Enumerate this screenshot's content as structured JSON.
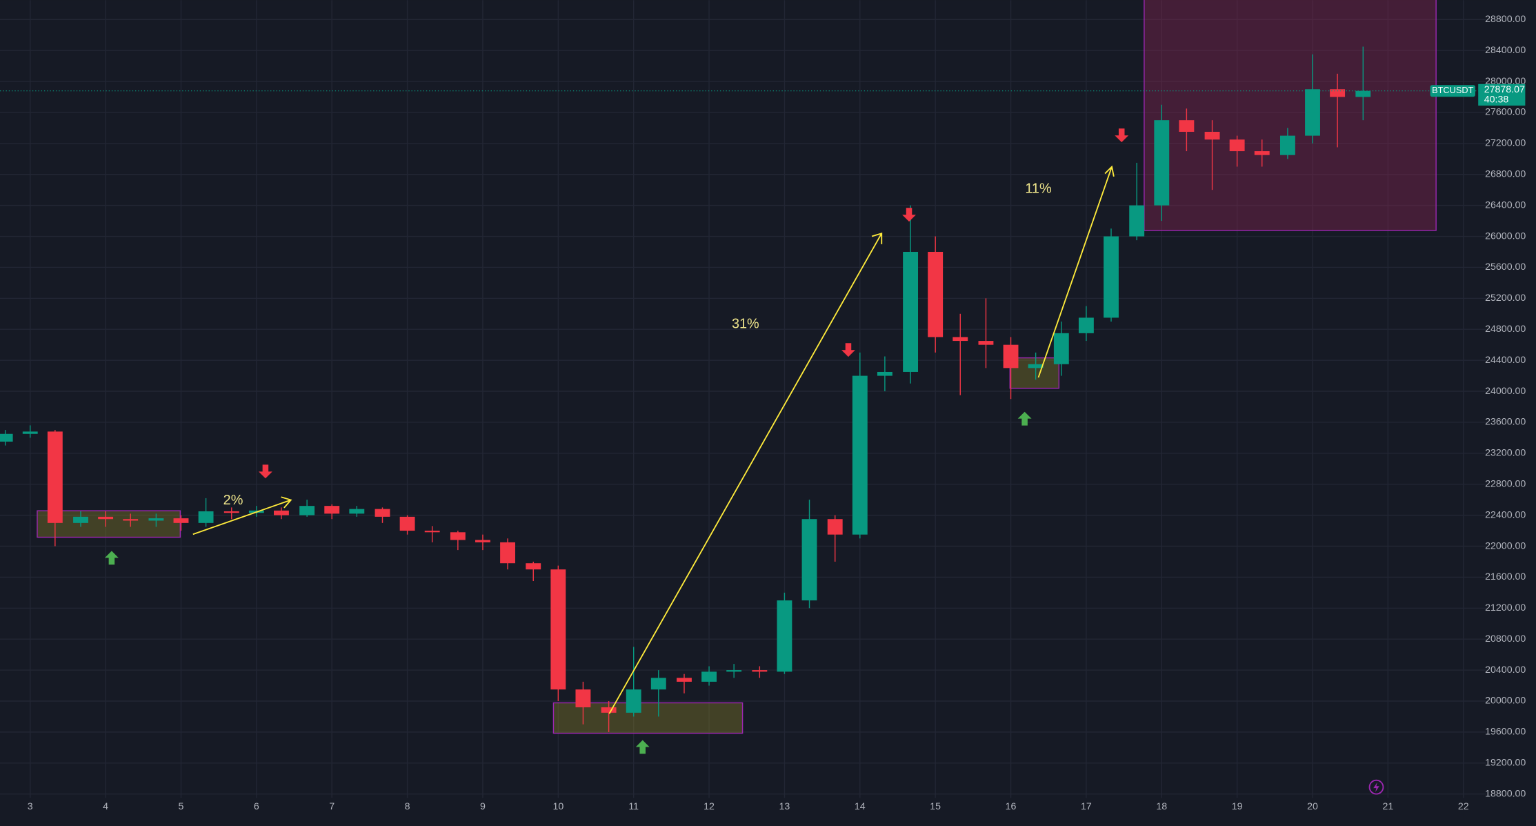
{
  "chart_data": {
    "type": "candlestick",
    "symbol": "BTCUSDT",
    "last_price": 27878.07,
    "countdown": "40:38",
    "x": [
      2.67,
      3,
      3.33,
      3.67,
      4,
      4.33,
      4.67,
      5,
      5.33,
      5.67,
      6,
      6.33,
      6.67,
      7,
      7.33,
      7.67,
      8,
      8.33,
      8.67,
      9,
      9.33,
      9.67,
      10,
      10.33,
      10.67,
      11,
      11.33,
      11.67,
      12,
      12.33,
      12.67,
      13,
      13.33,
      13.67,
      14,
      14.33,
      14.67,
      15,
      15.33,
      15.67,
      16,
      16.33,
      16.67,
      17,
      17.33,
      17.67,
      18,
      18.33,
      18.67,
      19,
      19.33,
      19.67,
      20,
      20.33,
      20.67
    ],
    "open": [
      23350,
      23450,
      23480,
      22300,
      22380,
      22350,
      22330,
      22360,
      22300,
      22450,
      22430,
      22460,
      22400,
      22520,
      22420,
      22480,
      22380,
      22200,
      22180,
      22080,
      22050,
      21780,
      21700,
      20150,
      19920,
      19850,
      20150,
      20300,
      20250,
      20380,
      20400,
      20380,
      21300,
      22350,
      22150,
      24200,
      24250,
      25800,
      24700,
      24650,
      24600,
      24300,
      24350,
      24750,
      24950,
      26000,
      26400,
      27500,
      27350,
      27250,
      27100,
      27050,
      27300,
      27900,
      27800
    ],
    "high": [
      23500,
      23560,
      23500,
      22450,
      22450,
      22420,
      22420,
      22400,
      22620,
      22500,
      22520,
      22500,
      22600,
      22540,
      22520,
      22500,
      22400,
      22260,
      22200,
      22150,
      22100,
      21800,
      21750,
      20250,
      20000,
      20700,
      20400,
      20350,
      20450,
      20480,
      20450,
      21400,
      22600,
      22400,
      24500,
      24450,
      26400,
      26000,
      25000,
      25200,
      24700,
      24500,
      24900,
      25100,
      26100,
      26950,
      27700,
      27650,
      27500,
      27300,
      27250,
      27400,
      28350,
      28100,
      28450
    ],
    "low": [
      23300,
      23400,
      22000,
      22250,
      22250,
      22250,
      22250,
      22200,
      22250,
      22350,
      22380,
      22350,
      22380,
      22350,
      22380,
      22300,
      22150,
      22050,
      21950,
      21950,
      21700,
      21550,
      20000,
      19700,
      19600,
      19800,
      19800,
      20100,
      20200,
      20300,
      20300,
      20350,
      21200,
      21800,
      22100,
      24000,
      24100,
      24500,
      23950,
      24300,
      23900,
      24150,
      24200,
      24650,
      24900,
      25950,
      26200,
      27100,
      26600,
      26900,
      26900,
      27000,
      27200,
      27150,
      27500
    ],
    "close": [
      23450,
      23480,
      22300,
      22380,
      22350,
      22330,
      22360,
      22300,
      22450,
      22430,
      22460,
      22400,
      22520,
      22420,
      22480,
      22380,
      22200,
      22180,
      22080,
      22050,
      21780,
      21700,
      20150,
      19920,
      19850,
      20150,
      20300,
      20250,
      20380,
      20400,
      20380,
      21300,
      22350,
      22150,
      24200,
      24250,
      25800,
      24700,
      24650,
      24600,
      24300,
      24350,
      24750,
      24950,
      26000,
      26400,
      27500,
      27350,
      27250,
      27100,
      27050,
      27300,
      27900,
      27800,
      27878
    ],
    "up_color": "#089981",
    "down_color": "#f23645",
    "xlim": [
      2.6,
      22.3
    ],
    "ylim": [
      18750,
      29050
    ],
    "xticks": [
      3,
      4,
      5,
      6,
      7,
      8,
      9,
      10,
      11,
      12,
      13,
      14,
      15,
      16,
      17,
      18,
      19,
      20,
      21,
      22
    ],
    "yticks": [
      {
        "value": 18800,
        "label": "18800.00"
      },
      {
        "value": 19200,
        "label": "19200.00"
      },
      {
        "value": 19600,
        "label": "19600.00"
      },
      {
        "value": 20000,
        "label": "20000.00"
      },
      {
        "value": 20400,
        "label": "20400.00"
      },
      {
        "value": 20800,
        "label": "20800.00"
      },
      {
        "value": 21200,
        "label": "21200.00"
      },
      {
        "value": 21600,
        "label": "21600.00"
      },
      {
        "value": 22000,
        "label": "22000.00"
      },
      {
        "value": 22400,
        "label": "22400.00"
      },
      {
        "value": 22800,
        "label": "22800.00"
      },
      {
        "value": 23200,
        "label": "23200.00"
      },
      {
        "value": 23600,
        "label": "23600.00"
      },
      {
        "value": 24000,
        "label": "24000.00"
      },
      {
        "value": 24400,
        "label": "24400.00"
      },
      {
        "value": 24800,
        "label": "24800.00"
      },
      {
        "value": 25200,
        "label": "25200.00"
      },
      {
        "value": 25600,
        "label": "25600.00"
      },
      {
        "value": 26000,
        "label": "26000.00"
      },
      {
        "value": 26400,
        "label": "26400.00"
      },
      {
        "value": 26800,
        "label": "26800.00"
      },
      {
        "value": 27200,
        "label": "27200.00"
      },
      {
        "value": 27600,
        "label": "27600.00"
      },
      {
        "value": 28000,
        "label": "28000.00"
      },
      {
        "value": 28400,
        "label": "28400.00"
      },
      {
        "value": 28800,
        "label": "28800.00"
      }
    ],
    "grid": true,
    "annotations": [
      "2%",
      "31%",
      "11%"
    ]
  }
}
